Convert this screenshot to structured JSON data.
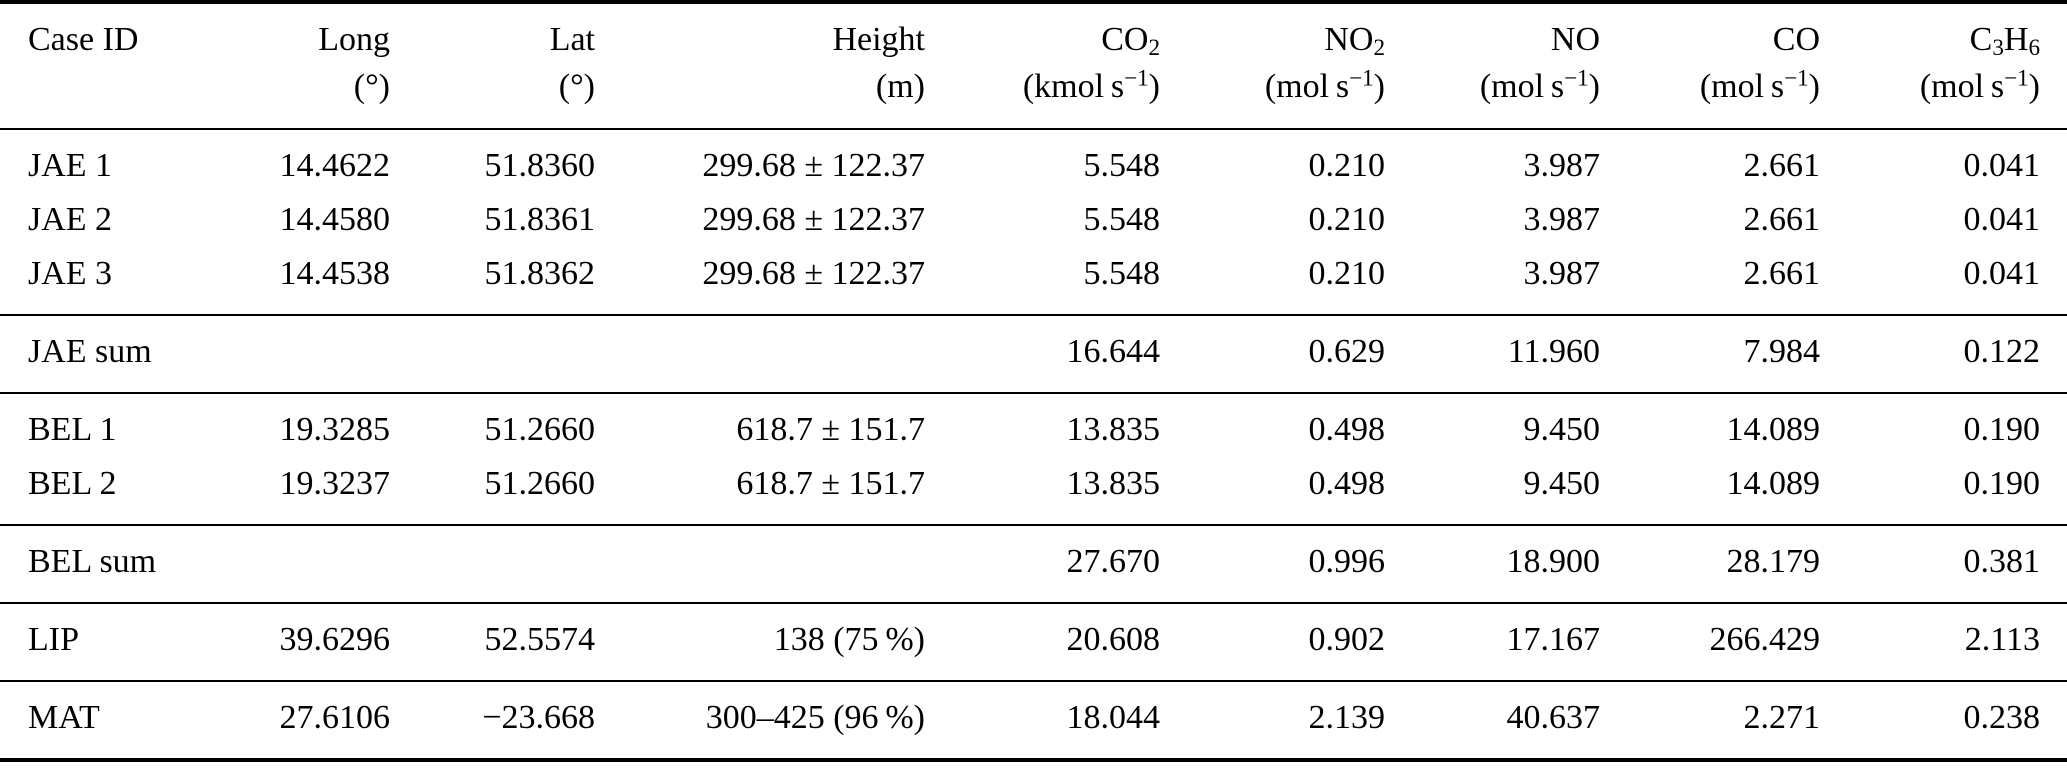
{
  "colors": {
    "text": "#000000",
    "background": "#ffffff",
    "rule": "#000000"
  },
  "table": {
    "columns": [
      {
        "id": "case_id",
        "label": "Case ID",
        "unit": "",
        "align": "left"
      },
      {
        "id": "long",
        "label": "Long",
        "unit": "(°)",
        "align": "right"
      },
      {
        "id": "lat",
        "label": "Lat",
        "unit": "(°)",
        "align": "right"
      },
      {
        "id": "height",
        "label": "Height",
        "unit": "(m)",
        "align": "right"
      },
      {
        "id": "co2",
        "label": "CO~2~",
        "unit": "(kmol s^−1^)",
        "align": "right"
      },
      {
        "id": "no2",
        "label": "NO~2~",
        "unit": "(mol s^−1^)",
        "align": "right"
      },
      {
        "id": "no",
        "label": "NO",
        "unit": "(mol s^−1^)",
        "align": "right"
      },
      {
        "id": "co",
        "label": "CO",
        "unit": "(mol s^−1^)",
        "align": "right"
      },
      {
        "id": "c3h6",
        "label": "C~3~H~6~",
        "unit": "(mol s^−1^)",
        "align": "right"
      }
    ],
    "groups": [
      {
        "name": "jae-cases",
        "rows": [
          [
            "JAE 1",
            "14.4622",
            "51.8360",
            "299.68 ± 122.37",
            "5.548",
            "0.210",
            "3.987",
            "2.661",
            "0.041"
          ],
          [
            "JAE 2",
            "14.4580",
            "51.8361",
            "299.68 ± 122.37",
            "5.548",
            "0.210",
            "3.987",
            "2.661",
            "0.041"
          ],
          [
            "JAE 3",
            "14.4538",
            "51.8362",
            "299.68 ± 122.37",
            "5.548",
            "0.210",
            "3.987",
            "2.661",
            "0.041"
          ]
        ]
      },
      {
        "name": "jae-sum",
        "rows": [
          [
            "JAE sum",
            "",
            "",
            "",
            "16.644",
            "0.629",
            "11.960",
            "7.984",
            "0.122"
          ]
        ]
      },
      {
        "name": "bel-cases",
        "rows": [
          [
            "BEL 1",
            "19.3285",
            "51.2660",
            "618.7 ± 151.7",
            "13.835",
            "0.498",
            "9.450",
            "14.089",
            "0.190"
          ],
          [
            "BEL 2",
            "19.3237",
            "51.2660",
            "618.7 ± 151.7",
            "13.835",
            "0.498",
            "9.450",
            "14.089",
            "0.190"
          ]
        ]
      },
      {
        "name": "bel-sum",
        "rows": [
          [
            "BEL sum",
            "",
            "",
            "",
            "27.670",
            "0.996",
            "18.900",
            "28.179",
            "0.381"
          ]
        ]
      },
      {
        "name": "lip",
        "rows": [
          [
            "LIP",
            "39.6296",
            "52.5574",
            "138 (75 %)",
            "20.608",
            "0.902",
            "17.167",
            "266.429",
            "2.113"
          ]
        ]
      },
      {
        "name": "mat",
        "rows": [
          [
            "MAT",
            "27.6106",
            "−23.668",
            "300–425 (96 %)",
            "18.044",
            "2.139",
            "40.637",
            "2.271",
            "0.238"
          ]
        ]
      }
    ]
  }
}
